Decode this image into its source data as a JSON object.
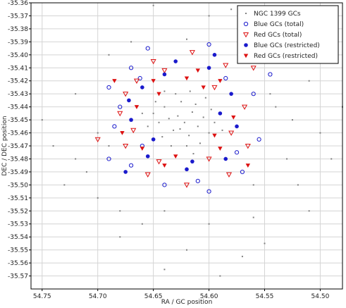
{
  "chart_data": {
    "type": "scatter",
    "title": "",
    "xlabel": "RA / GC position",
    "ylabel": "DEC / DEC position",
    "xlim": [
      54.76,
      54.48
    ],
    "ylim": [
      -35.58,
      -35.36
    ],
    "x_inverted": true,
    "grid": true,
    "legend_placement": "top-right",
    "x_ticks": [
      "54.75",
      "54.70",
      "54.65",
      "54.60",
      "54.55",
      "54.50"
    ],
    "x_tick_values": [
      54.75,
      54.7,
      54.65,
      54.6,
      54.55,
      54.5
    ],
    "y_ticks": [
      "-35.36",
      "-35.37",
      "-35.38",
      "-35.39",
      "-35.40",
      "-35.41",
      "-35.42",
      "-35.43",
      "-35.44",
      "-35.45",
      "-35.46",
      "-35.47",
      "-35.48",
      "-35.49",
      "-35.50",
      "-35.51",
      "-35.52",
      "-35.53",
      "-35.54",
      "-35.55",
      "-35.56",
      "-35.57"
    ],
    "y_tick_values": [
      -35.36,
      -35.37,
      -35.38,
      -35.39,
      -35.4,
      -35.41,
      -35.42,
      -35.43,
      -35.44,
      -35.45,
      -35.46,
      -35.47,
      -35.48,
      -35.49,
      -35.5,
      -35.51,
      -35.52,
      -35.53,
      -35.54,
      -35.55,
      -35.56,
      -35.57
    ],
    "series": [
      {
        "name": "NGC 1399 GCs",
        "marker": "dot",
        "color": "#808080",
        "points": [
          [
            54.628,
            -35.447
          ],
          [
            54.622,
            -35.452
          ],
          [
            54.615,
            -35.444
          ],
          [
            54.632,
            -35.458
          ],
          [
            54.61,
            -35.455
          ],
          [
            54.64,
            -35.44
          ],
          [
            54.618,
            -35.462
          ],
          [
            54.605,
            -35.448
          ],
          [
            54.636,
            -35.449
          ],
          [
            54.625,
            -35.436
          ],
          [
            54.612,
            -35.438
          ],
          [
            54.645,
            -35.452
          ],
          [
            54.62,
            -35.47
          ],
          [
            54.6,
            -35.46
          ],
          [
            54.65,
            -35.445
          ],
          [
            54.598,
            -35.442
          ],
          [
            54.63,
            -35.43
          ],
          [
            54.642,
            -35.463
          ],
          [
            54.608,
            -35.468
          ],
          [
            54.626,
            -35.457
          ],
          [
            54.655,
            -35.455
          ],
          [
            54.595,
            -35.452
          ],
          [
            54.617,
            -35.428
          ],
          [
            54.634,
            -35.47
          ],
          [
            54.603,
            -35.433
          ],
          [
            54.648,
            -35.436
          ],
          [
            54.614,
            -35.476
          ],
          [
            54.588,
            -35.458
          ],
          [
            54.66,
            -35.445
          ],
          [
            54.64,
            -35.428
          ],
          [
            54.69,
            -35.4
          ],
          [
            54.72,
            -35.43
          ],
          [
            54.74,
            -35.47
          ],
          [
            54.7,
            -35.51
          ],
          [
            54.68,
            -35.54
          ],
          [
            54.64,
            -35.565
          ],
          [
            54.59,
            -35.57
          ],
          [
            54.55,
            -35.545
          ],
          [
            54.52,
            -35.5
          ],
          [
            54.5,
            -35.46
          ],
          [
            54.51,
            -35.42
          ],
          [
            54.53,
            -35.4
          ],
          [
            54.56,
            -35.38
          ],
          [
            54.6,
            -35.37
          ],
          [
            54.65,
            -35.362
          ],
          [
            54.58,
            -35.365
          ],
          [
            54.7,
            -35.46
          ],
          [
            54.71,
            -35.49
          ],
          [
            54.68,
            -35.52
          ],
          [
            54.62,
            -35.55
          ],
          [
            54.56,
            -35.525
          ],
          [
            54.53,
            -35.48
          ],
          [
            54.54,
            -35.44
          ],
          [
            54.57,
            -35.395
          ],
          [
            54.62,
            -35.388
          ],
          [
            54.67,
            -35.39
          ],
          [
            54.69,
            -35.47
          ],
          [
            54.6,
            -35.53
          ],
          [
            54.56,
            -35.5
          ],
          [
            54.545,
            -35.43
          ],
          [
            54.48,
            -35.44
          ],
          [
            54.49,
            -35.48
          ],
          [
            54.75,
            -35.45
          ],
          [
            54.73,
            -35.5
          ],
          [
            54.72,
            -35.48
          ],
          [
            54.66,
            -35.53
          ],
          [
            54.64,
            -35.52
          ],
          [
            54.57,
            -35.555
          ],
          [
            54.51,
            -35.52
          ],
          [
            54.525,
            -35.45
          ]
        ]
      },
      {
        "name": "Blue GCs (total)",
        "marker": "open-circle",
        "color": "#1a1acc",
        "points": [
          [
            54.67,
            -35.41
          ],
          [
            54.655,
            -35.395
          ],
          [
            54.6,
            -35.392
          ],
          [
            54.57,
            -35.405
          ],
          [
            54.56,
            -35.43
          ],
          [
            54.555,
            -35.465
          ],
          [
            54.57,
            -35.49
          ],
          [
            54.6,
            -35.505
          ],
          [
            54.64,
            -35.5
          ],
          [
            54.67,
            -35.485
          ],
          [
            54.685,
            -35.455
          ],
          [
            54.69,
            -35.425
          ],
          [
            54.662,
            -35.418
          ],
          [
            54.585,
            -35.418
          ],
          [
            54.575,
            -35.475
          ],
          [
            54.61,
            -35.497
          ],
          [
            54.66,
            -35.47
          ],
          [
            54.68,
            -35.44
          ],
          [
            54.545,
            -35.415
          ],
          [
            54.69,
            -35.48
          ]
        ]
      },
      {
        "name": "Red GCs (total)",
        "marker": "open-triangle-down",
        "color": "#dd1111",
        "points": [
          [
            54.665,
            -35.42
          ],
          [
            54.65,
            -35.405
          ],
          [
            54.615,
            -35.398
          ],
          [
            54.585,
            -35.408
          ],
          [
            54.568,
            -35.44
          ],
          [
            54.565,
            -35.47
          ],
          [
            54.582,
            -35.492
          ],
          [
            54.62,
            -35.5
          ],
          [
            54.655,
            -35.492
          ],
          [
            54.675,
            -35.47
          ],
          [
            54.68,
            -35.445
          ],
          [
            54.675,
            -35.43
          ],
          [
            54.64,
            -35.412
          ],
          [
            54.595,
            -35.425
          ],
          [
            54.58,
            -35.46
          ],
          [
            54.6,
            -35.48
          ],
          [
            54.645,
            -35.482
          ],
          [
            54.668,
            -35.458
          ],
          [
            54.56,
            -35.41
          ],
          [
            54.7,
            -35.465
          ]
        ]
      },
      {
        "name": "Blue GCs (restricted)",
        "marker": "filled-circle",
        "color": "#1a1acc",
        "points": [
          [
            54.66,
            -35.425
          ],
          [
            54.64,
            -35.415
          ],
          [
            54.6,
            -35.41
          ],
          [
            54.58,
            -35.43
          ],
          [
            54.575,
            -35.455
          ],
          [
            54.585,
            -35.48
          ],
          [
            54.62,
            -35.488
          ],
          [
            54.655,
            -35.478
          ],
          [
            54.67,
            -35.45
          ],
          [
            54.672,
            -35.435
          ],
          [
            54.63,
            -35.405
          ],
          [
            54.59,
            -35.445
          ],
          [
            54.615,
            -35.482
          ],
          [
            54.65,
            -35.465
          ],
          [
            54.675,
            -35.49
          ],
          [
            54.595,
            -35.4
          ]
        ]
      },
      {
        "name": "Red GCs (restricted)",
        "marker": "filled-triangle-down",
        "color": "#dd1111",
        "points": [
          [
            54.665,
            -35.44
          ],
          [
            54.65,
            -35.42
          ],
          [
            54.61,
            -35.412
          ],
          [
            54.59,
            -35.42
          ],
          [
            54.578,
            -35.448
          ],
          [
            54.59,
            -35.472
          ],
          [
            54.63,
            -35.478
          ],
          [
            54.66,
            -35.472
          ],
          [
            54.678,
            -35.46
          ],
          [
            54.645,
            -35.43
          ],
          [
            54.605,
            -35.425
          ],
          [
            54.595,
            -35.462
          ],
          [
            54.64,
            -35.485
          ],
          [
            54.62,
            -35.418
          ],
          [
            54.565,
            -35.485
          ],
          [
            54.685,
            -35.42
          ]
        ]
      }
    ]
  }
}
